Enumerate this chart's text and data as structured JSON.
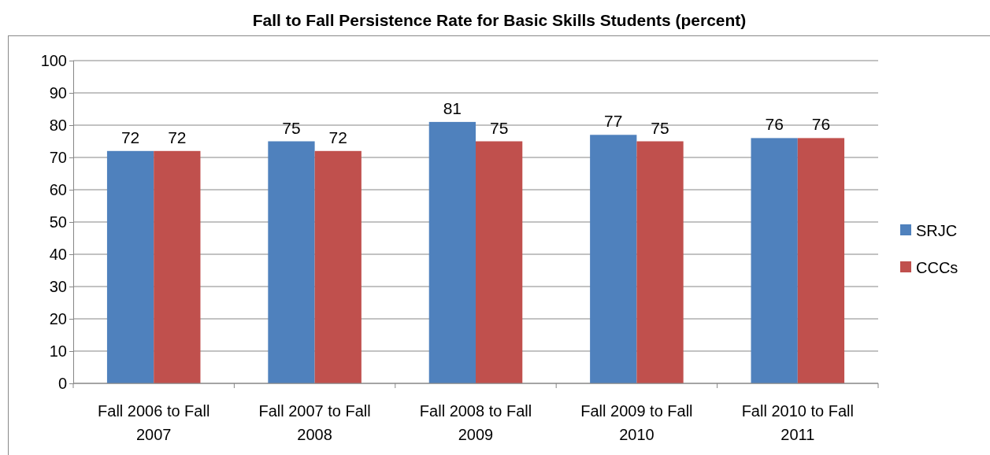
{
  "chart_data": {
    "type": "bar",
    "title": "Fall to Fall Persistence Rate for Basic Skills Students (percent)",
    "categories": [
      "Fall 2006 to Fall 2007",
      "Fall 2007 to Fall 2008",
      "Fall 2008 to Fall 2009",
      "Fall 2009 to Fall 2010",
      "Fall 2010 to Fall 2011"
    ],
    "series": [
      {
        "name": "SRJC",
        "color": "#4f81bd",
        "values": [
          72,
          75,
          81,
          77,
          76
        ]
      },
      {
        "name": "CCCs",
        "color": "#c0504d",
        "values": [
          72,
          72,
          75,
          75,
          76
        ]
      }
    ],
    "ylim": [
      0,
      100
    ],
    "yticks": [
      0,
      10,
      20,
      30,
      40,
      50,
      60,
      70,
      80,
      90,
      100
    ],
    "grid": "y",
    "legend": "right",
    "data_labels": true
  }
}
